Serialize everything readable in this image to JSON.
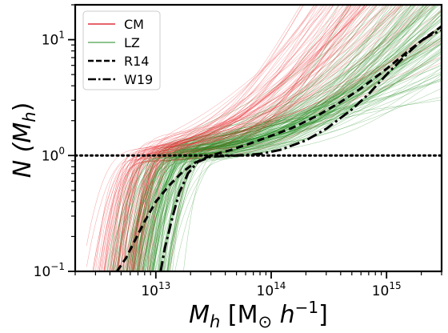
{
  "chart_data": {
    "type": "line",
    "xscale": "log",
    "yscale": "log",
    "xlim": [
      2000000000000.0,
      3000000000000000.0
    ],
    "ylim": [
      0.1,
      20
    ],
    "x_major_ticks": [
      {
        "value": 10000000000000.0,
        "label": "10",
        "exp": "13"
      },
      {
        "value": 100000000000000.0,
        "label": "10",
        "exp": "14"
      },
      {
        "value": 1000000000000000.0,
        "label": "10",
        "exp": "15"
      }
    ],
    "y_major_ticks": [
      {
        "value": 0.1,
        "label": "10",
        "exp": "−1"
      },
      {
        "value": 1,
        "label": "10",
        "exp": "0"
      },
      {
        "value": 10,
        "label": "10",
        "exp": "1"
      }
    ],
    "xlabel": {
      "main": "M",
      "sub": "h",
      "rest": " [M",
      "rest_sub": "⊙",
      "rest2": " h",
      "rest_sup": "−1",
      "rest3": "]"
    },
    "ylabel": {
      "main": "N (M",
      "sub": "h",
      "rest": ")"
    },
    "reference_line": {
      "y": 1.0,
      "style": "dotted",
      "color": "#000000"
    },
    "legend": {
      "placement": "top-left",
      "entries": [
        {
          "label": "CM",
          "color": "#e8636b",
          "style": "solid"
        },
        {
          "label": "LZ",
          "color": "#8fc48f",
          "style": "solid"
        },
        {
          "label": "R14",
          "color": "#000000",
          "style": "dashed"
        },
        {
          "label": "W19",
          "color": "#000000",
          "style": "dashdot"
        }
      ]
    },
    "ensembles": [
      {
        "name": "CM",
        "color": "#e8262b",
        "count": 90,
        "logM_cut": 12.85,
        "logM_cut_spread": 0.15,
        "width": 0.09,
        "logM1": 13.75,
        "logM1_spread": 0.25,
        "alpha": 1.25,
        "alpha_spread": 0.35
      },
      {
        "name": "LZ",
        "color": "#1f8c1f",
        "count": 140,
        "logM_cut": 13.05,
        "logM_cut_spread": 0.14,
        "width": 0.12,
        "logM1": 14.25,
        "logM1_spread": 0.22,
        "alpha": 1.0,
        "alpha_spread": 0.3
      }
    ],
    "series": [
      {
        "name": "R14",
        "style": "dashed",
        "x": [
          4600000000000.0,
          5500000000000.0,
          6500000000000.0,
          8000000000000.0,
          10000000000000.0,
          13000000000000.0,
          17000000000000.0,
          22000000000000.0,
          30000000000000.0,
          45000000000000.0,
          70000000000000.0,
          100000000000000.0,
          150000000000000.0,
          250000000000000.0,
          400000000000000.0,
          600000000000000.0,
          1000000000000000.0,
          1600000000000000.0,
          2200000000000000.0,
          3000000000000000.0
        ],
        "y": [
          0.1,
          0.13,
          0.18,
          0.27,
          0.4,
          0.55,
          0.72,
          0.87,
          1.0,
          1.12,
          1.3,
          1.48,
          1.72,
          2.2,
          2.9,
          3.8,
          5.6,
          8.2,
          10.5,
          13.0
        ]
      },
      {
        "name": "W19",
        "style": "dashdot",
        "x": [
          11000000000000.0,
          12000000000000.0,
          14000000000000.0,
          16000000000000.0,
          19000000000000.0,
          23000000000000.0,
          30000000000000.0,
          50000000000000.0,
          80000000000000.0,
          120000000000000.0,
          200000000000000.0,
          300000000000000.0,
          500000000000000.0,
          700000000000000.0,
          1000000000000000.0,
          1500000000000000.0,
          2000000000000000.0,
          2500000000000000.0,
          3000000000000000.0
        ],
        "y": [
          0.1,
          0.16,
          0.3,
          0.48,
          0.7,
          0.88,
          0.98,
          1.0,
          1.03,
          1.12,
          1.35,
          1.7,
          2.5,
          3.4,
          5.0,
          7.5,
          9.8,
          11.2,
          12.0
        ]
      }
    ]
  }
}
